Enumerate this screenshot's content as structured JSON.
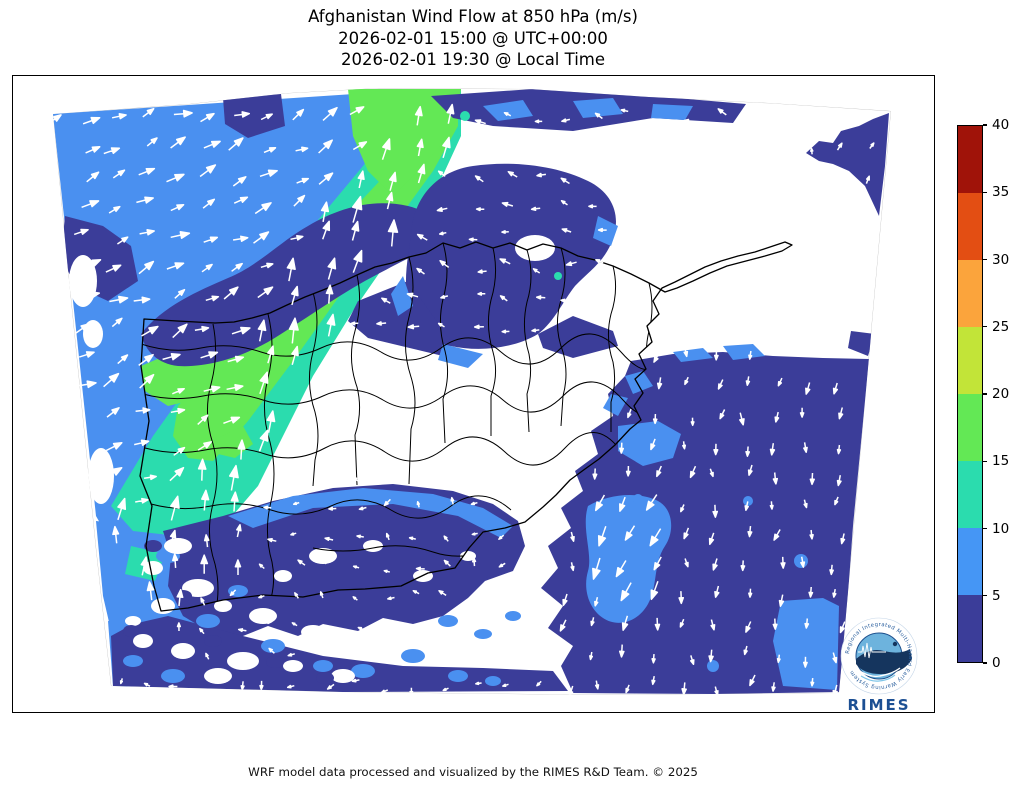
{
  "title": {
    "line1": "Afghanistan Wind Flow at 850 hPa (m/s)",
    "line2": "2026-02-01 15:00 @ UTC+00:00",
    "line3": "2026-02-01 19:30 @ Local Time"
  },
  "footer": "WRF model data processed and visualized by the RIMES R&D Team. © 2025",
  "colorbar": {
    "min": 0,
    "max": 40,
    "ticks": [
      0,
      5,
      10,
      15,
      20,
      25,
      30,
      35,
      40
    ],
    "segments": [
      {
        "range": "0-5",
        "color": "#3b3d99"
      },
      {
        "range": "5-10",
        "color": "#4596f5"
      },
      {
        "range": "10-15",
        "color": "#2bdcae"
      },
      {
        "range": "15-20",
        "color": "#63e855"
      },
      {
        "range": "20-25",
        "color": "#c2e438"
      },
      {
        "range": "25-30",
        "color": "#fba43c"
      },
      {
        "range": "30-35",
        "color": "#e34e13"
      },
      {
        "range": "35-40",
        "color": "#a01309"
      }
    ]
  },
  "logo": {
    "name": "RIMES",
    "ring_text": "Regional Integrated Multi-Hazard Early Warning System"
  }
}
